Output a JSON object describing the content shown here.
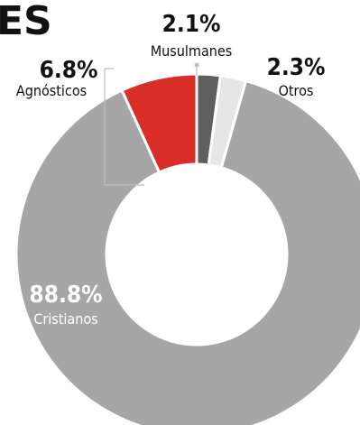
{
  "title_fragment": "ES",
  "colors": {
    "cristianos": "#a6a6a6",
    "agnosticos": "#d92d27",
    "musulmanes": "#5f5f5f",
    "otros": "#e6e6e6",
    "text_dark": "#111111",
    "text_light": "#ffffff",
    "leader": "#bdbdbd"
  },
  "chart_data": {
    "type": "pie",
    "donut": true,
    "title": "",
    "slices": [
      {
        "name": "Cristianos",
        "value": 88.8,
        "label": "88.8%"
      },
      {
        "name": "Agnósticos",
        "value": 6.8,
        "label": "6.8%"
      },
      {
        "name": "Musulmanes",
        "value": 2.1,
        "label": "2.1%"
      },
      {
        "name": "Otros",
        "value": 2.3,
        "label": "2.3%"
      }
    ]
  }
}
